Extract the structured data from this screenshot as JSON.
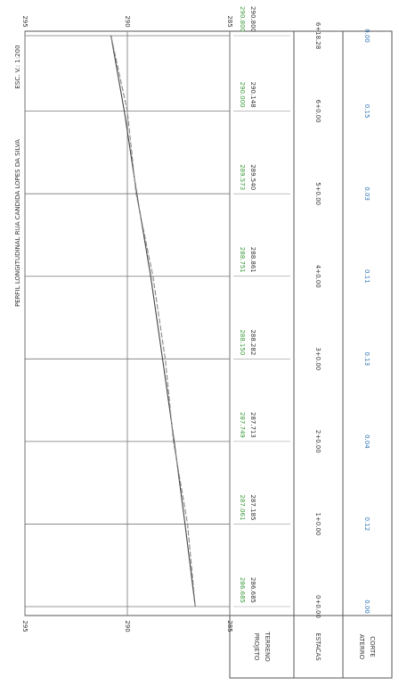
{
  "chart_data": {
    "type": "line",
    "title": "PERFIL LONGITUDINAL RUA CANDIDA LOPES DA SILVA",
    "subtitle": "ESC. V.: 1:200",
    "x": [
      0,
      20,
      40,
      60,
      80,
      100,
      120,
      138.28
    ],
    "xticks": [
      {
        "value": 0,
        "label": "0+0.00"
      },
      {
        "value": 20,
        "label": "1+0.00"
      },
      {
        "value": 40,
        "label": "2+0.00"
      },
      {
        "value": 60,
        "label": "3+0.00"
      },
      {
        "value": 80,
        "label": "4+0.00"
      },
      {
        "value": 100,
        "label": "5+0.00"
      },
      {
        "value": 120,
        "label": "6+0.00"
      },
      {
        "value": 138.28,
        "label": "6+18.28"
      }
    ],
    "xlim": [
      0,
      138.28
    ],
    "ylim": [
      295,
      285
    ],
    "yticks": [
      295,
      290,
      285
    ],
    "grid": true,
    "series": [
      {
        "name": "TERRENO",
        "color": "#444444",
        "text_color": "#333333",
        "values": [
          286.685,
          287.185,
          287.713,
          288.282,
          288.861,
          289.54,
          290.148,
          290.8
        ],
        "value_labels": [
          "286.685",
          "287.185",
          "287.713",
          "288.282",
          "288.861",
          "289.540",
          "290.148",
          "290.800"
        ]
      },
      {
        "name": "PROJETO",
        "color": "#888888",
        "text_color": "#3a9a3a",
        "values": [
          286.685,
          287.061,
          287.749,
          288.15,
          288.751,
          289.573,
          290.0,
          290.8
        ],
        "value_labels": [
          "286.685",
          "287.061",
          "287.749",
          "288.150",
          "288.751",
          "289.573",
          "290.000",
          "290.800"
        ]
      }
    ],
    "cut": {
      "color": "#2a6fb0",
      "values": [
        0,
        0.12,
        0.04,
        0.13,
        0.11,
        0.03,
        0.15,
        0
      ],
      "value_labels": [
        "0.00",
        "0.12",
        "0.04",
        "0.13",
        "0.11",
        "0.03",
        "0.15",
        "0.00"
      ]
    },
    "table_headers": {
      "stations": "ESTACAS",
      "cut": "CORTE",
      "fill": "ATERRO"
    }
  }
}
